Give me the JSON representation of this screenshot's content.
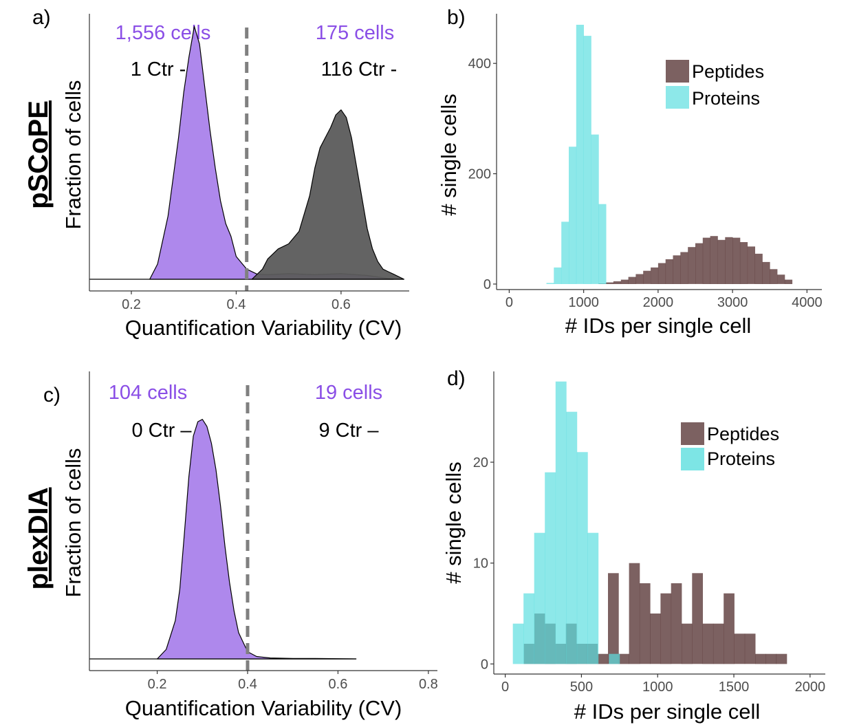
{
  "colors": {
    "purple": "#a77eea",
    "gray": "#5b5b5b",
    "cyan": "#5cdedf",
    "brown": "#5b3a3a",
    "annotation_purple": "#8a4ee6"
  },
  "row_labels": {
    "top": "pSCoPE",
    "bottom": "plexDIA"
  },
  "chart_data": [
    {
      "panel": "a)",
      "type": "area",
      "xlabel": "Quantification Variability (CV)",
      "ylabel": "Fraction of cells",
      "xlim": [
        0.12,
        0.73
      ],
      "ylim": [
        0,
        1.05
      ],
      "xticks": [
        0.2,
        0.4,
        0.6
      ],
      "xtick_labels": [
        "0.2",
        "0.4",
        "0.6"
      ],
      "threshold": 0.42,
      "annotations": [
        {
          "cells": "1,556 cells",
          "ctr": "1 Ctr -"
        },
        {
          "cells": "175 cells",
          "ctr": "116 Ctr -"
        }
      ],
      "series": [
        {
          "color": "#a77eea",
          "x": [
            0.235,
            0.25,
            0.27,
            0.29,
            0.3,
            0.31,
            0.32,
            0.33,
            0.34,
            0.35,
            0.36,
            0.37,
            0.38,
            0.39,
            0.4,
            0.42,
            0.44,
            0.46,
            0.5,
            0.55,
            0.6,
            0.65,
            0.7
          ],
          "y": [
            0,
            0.06,
            0.25,
            0.56,
            0.74,
            0.88,
            1.0,
            0.93,
            0.76,
            0.59,
            0.44,
            0.31,
            0.22,
            0.17,
            0.09,
            0.04,
            0.02,
            0.018,
            0.022,
            0.018,
            0.022,
            0.015,
            0
          ]
        },
        {
          "color": "#5b5b5b",
          "x": [
            0.43,
            0.45,
            0.46,
            0.48,
            0.5,
            0.52,
            0.54,
            0.55,
            0.56,
            0.57,
            0.58,
            0.59,
            0.6,
            0.61,
            0.62,
            0.63,
            0.64,
            0.65,
            0.66,
            0.67,
            0.68,
            0.69,
            0.7,
            0.72
          ],
          "y": [
            0,
            0.04,
            0.08,
            0.12,
            0.14,
            0.19,
            0.33,
            0.44,
            0.52,
            0.56,
            0.6,
            0.65,
            0.67,
            0.64,
            0.56,
            0.44,
            0.32,
            0.2,
            0.12,
            0.07,
            0.04,
            0.03,
            0.02,
            0
          ]
        }
      ]
    },
    {
      "panel": "b)",
      "type": "bar",
      "xlabel": "# IDs per single cell",
      "ylabel": "# single cells",
      "xlim": [
        -170,
        4200
      ],
      "ylim": [
        -10,
        490
      ],
      "xticks": [
        0,
        1000,
        2000,
        3000,
        4000
      ],
      "yticks": [
        0,
        200,
        400
      ],
      "xtick_labels": [
        "0",
        "1000",
        "2000",
        "3000",
        "4000"
      ],
      "ytick_labels": [
        "0",
        "200",
        "400"
      ],
      "legend": [
        "Peptides",
        "Proteins"
      ],
      "legend_position": "top-right",
      "series": [
        {
          "name": "Peptides",
          "color": "#5b3a3a",
          "bins": [
            1200,
            1300,
            1400,
            1500,
            1600,
            1700,
            1800,
            1900,
            2000,
            2100,
            2200,
            2300,
            2400,
            2500,
            2600,
            2700,
            2800,
            2900,
            3000,
            3100,
            3200,
            3300,
            3400,
            3500,
            3600,
            3700
          ],
          "bin_width": 100,
          "values": [
            1,
            3,
            5,
            8,
            13,
            18,
            24,
            30,
            38,
            45,
            52,
            58,
            67,
            74,
            84,
            87,
            80,
            85,
            84,
            76,
            68,
            55,
            40,
            27,
            17,
            8
          ]
        },
        {
          "name": "Proteins",
          "color": "#5cdedf",
          "bins": [
            500,
            600,
            700,
            800,
            900,
            1000,
            1100,
            1200
          ],
          "bin_width": 100,
          "values": [
            2,
            30,
            113,
            249,
            470,
            450,
            271,
            145
          ]
        }
      ]
    },
    {
      "panel": "c)",
      "type": "area",
      "xlabel": "Quantification Variability (CV)",
      "ylabel": "Fraction of cells",
      "xlim": [
        0.05,
        0.82
      ],
      "ylim": [
        0,
        1.2
      ],
      "xticks": [
        0.2,
        0.4,
        0.6,
        0.8
      ],
      "xtick_labels": [
        "0.2",
        "0.4",
        "0.6",
        "0.8"
      ],
      "threshold": 0.4,
      "annotations": [
        {
          "cells": "104 cells",
          "ctr": "0 Ctr –"
        },
        {
          "cells": "19 cells",
          "ctr": "9 Ctr –"
        }
      ],
      "series": [
        {
          "color": "#a77eea",
          "x": [
            0.2,
            0.22,
            0.24,
            0.25,
            0.26,
            0.27,
            0.28,
            0.29,
            0.3,
            0.31,
            0.32,
            0.33,
            0.34,
            0.35,
            0.36,
            0.37,
            0.38,
            0.4,
            0.42,
            0.45,
            0.5,
            0.55,
            0.64
          ],
          "y": [
            0,
            0.04,
            0.16,
            0.29,
            0.52,
            0.76,
            0.93,
            0.99,
            1.0,
            0.97,
            0.9,
            0.79,
            0.64,
            0.47,
            0.32,
            0.2,
            0.11,
            0.03,
            0.01,
            0.004,
            0.002,
            0.002,
            0
          ]
        }
      ]
    },
    {
      "panel": "d)",
      "type": "bar",
      "xlabel": "# IDs per single cell",
      "ylabel": "# single cells",
      "xlim": [
        -75,
        2100
      ],
      "ylim": [
        -1,
        29
      ],
      "xticks": [
        0,
        500,
        1000,
        1500,
        2000
      ],
      "yticks": [
        0,
        10,
        20
      ],
      "xtick_labels": [
        "0",
        "500",
        "1000",
        "1500",
        "2000"
      ],
      "ytick_labels": [
        "0",
        "10",
        "20"
      ],
      "legend": [
        "Peptides",
        "Proteins"
      ],
      "legend_position": "top-right",
      "series": [
        {
          "name": "Peptides",
          "color": "#5b3a3a",
          "bins": [
            122,
            191,
            260,
            329,
            398,
            467,
            536,
            605,
            674,
            743,
            812,
            881,
            950,
            1019,
            1088,
            1157,
            1226,
            1295,
            1364,
            1433,
            1502,
            1571,
            1640,
            1709,
            1778
          ],
          "bin_width": 69,
          "values": [
            2,
            5,
            4,
            2,
            4,
            2,
            2,
            1,
            9,
            1,
            10,
            8,
            5,
            7,
            8,
            4,
            9,
            4,
            4,
            7,
            3,
            3,
            1,
            1,
            1
          ]
        },
        {
          "name": "Proteins",
          "color": "#5cdedf",
          "bins": [
            50,
            120,
            190,
            260,
            330,
            400,
            470,
            540,
            610,
            680
          ],
          "bin_width": 70,
          "values": [
            4,
            7,
            13,
            19,
            28,
            25,
            21,
            13,
            0,
            1
          ]
        }
      ]
    }
  ]
}
